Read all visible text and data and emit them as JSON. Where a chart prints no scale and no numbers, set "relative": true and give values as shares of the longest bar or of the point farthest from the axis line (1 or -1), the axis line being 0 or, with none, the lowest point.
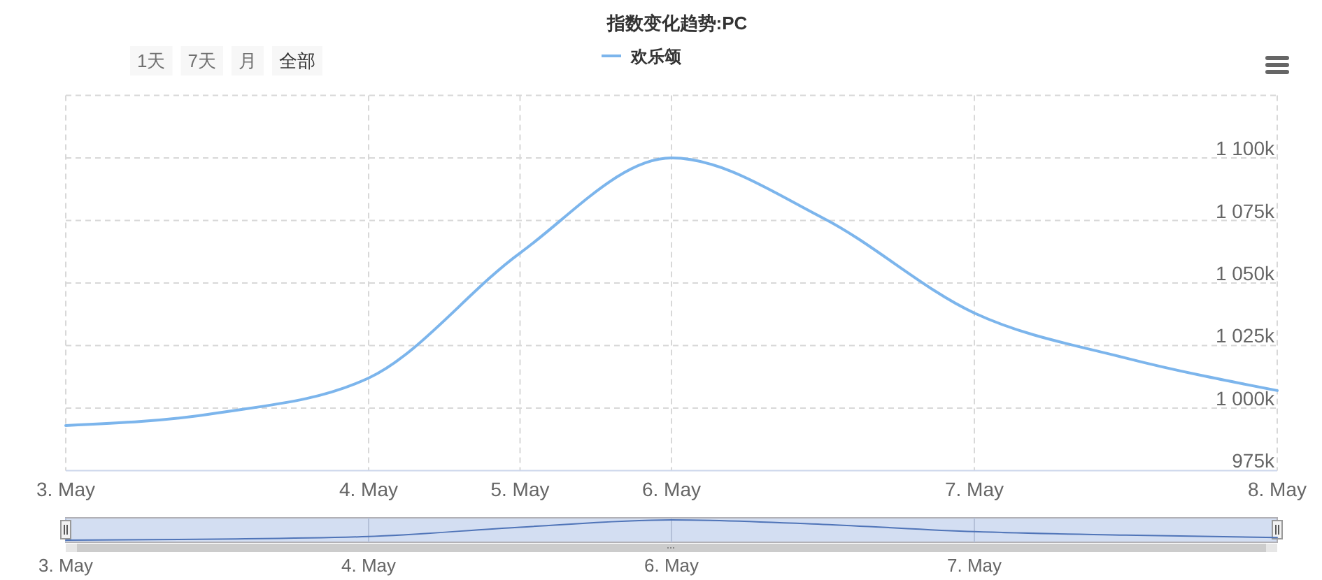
{
  "chart_data": [
    {
      "type": "line",
      "title": "指数变化趋势:PC",
      "categories": [
        "3. May",
        null,
        "4. May",
        "5. May",
        "6. May",
        null,
        "7. May",
        null,
        "8. May"
      ],
      "series": [
        {
          "name": "欢乐颂",
          "color": "#7cb5ec",
          "values": [
            993000,
            998000,
            1012000,
            1062000,
            1100000,
            1076000,
            1038000,
            1020000,
            1007000
          ]
        }
      ],
      "ylim": [
        975000,
        1125000
      ],
      "yticks": [
        {
          "value": 975000,
          "label": "975k"
        },
        {
          "value": 1000000,
          "label": "1 000k"
        },
        {
          "value": 1025000,
          "label": "1 025k"
        },
        {
          "value": 1050000,
          "label": "1 050k"
        },
        {
          "value": 1075000,
          "label": "1 075k"
        },
        {
          "value": 1100000,
          "label": "1 100k"
        },
        {
          "value": 1125000,
          "label": null
        }
      ],
      "grid": true,
      "legend": "top",
      "line_style": "solid",
      "annotations": [
        "1天",
        "7天",
        "月",
        "全部"
      ]
    },
    {
      "type": "line",
      "relative": true,
      "categories": [
        "3. May",
        null,
        "4. May",
        null,
        "6. May",
        null,
        "7. May",
        null,
        null
      ],
      "series": [
        {
          "color": "#4f74b8",
          "values": [
            0,
            0.05,
            0.18,
            0.64,
            1,
            0.78,
            0.42,
            0.25,
            0.13
          ]
        }
      ],
      "grid": "x",
      "line_style": "solid"
    }
  ]
}
